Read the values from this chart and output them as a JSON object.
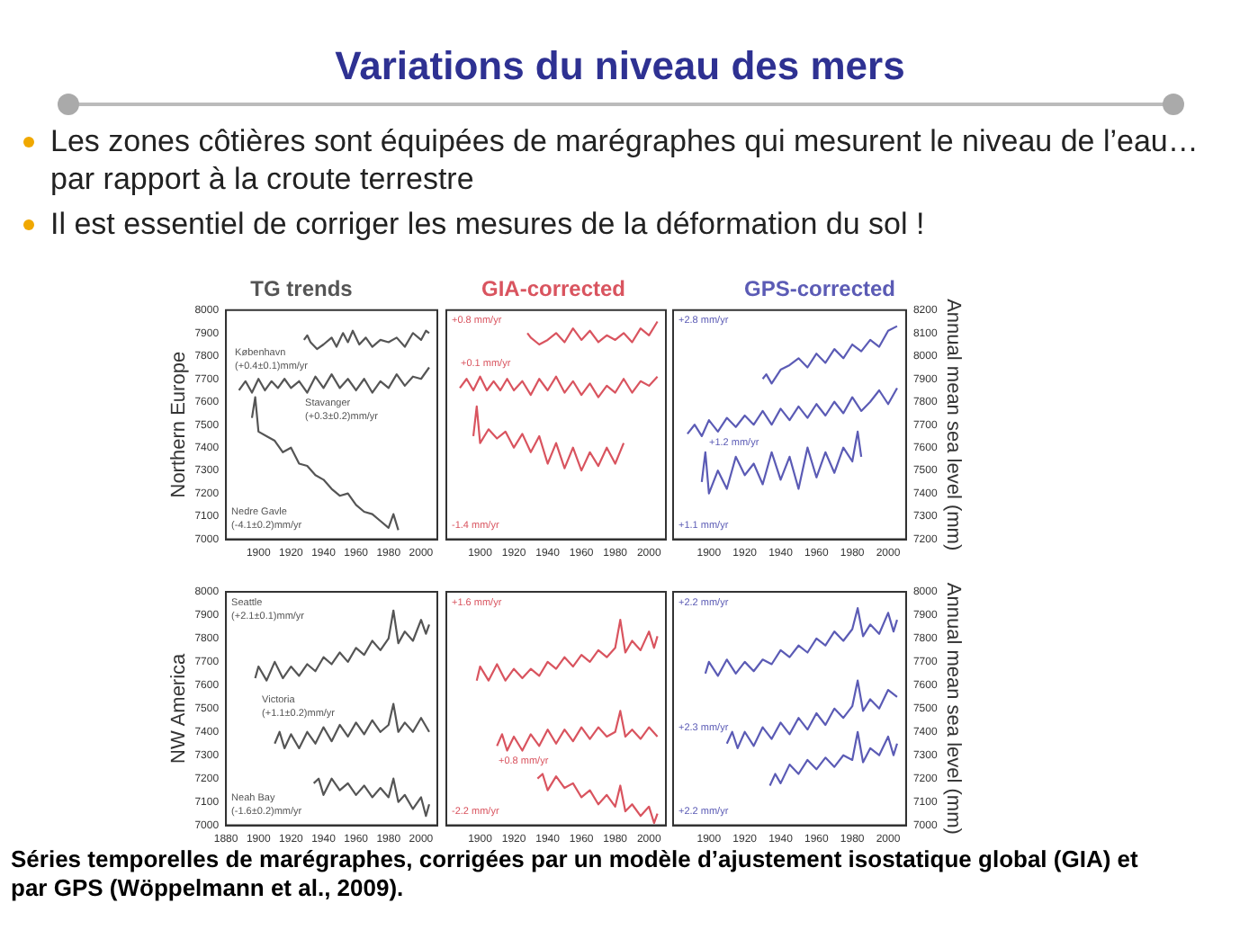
{
  "chart_data": [
    {
      "type": "other",
      "title": "Variations du niveau des mers",
      "annotations": [
        "Les zones côtières sont équipées de marégraphes qui mesurent le niveau de l’eau… par rapport à la croute terrestre",
        "Il est essentiel de corriger les mesures de la déformation du sol !",
        "Séries temporelles de marégraphes, corrigées par un modèle d’ajustement isostatique global (GIA) et par GPS (Wöppelmann et al., 2009)."
      ]
    },
    {
      "type": "line",
      "title": "TG trends",
      "ylabel": "Northern Europe",
      "xlim": [
        1880,
        2010
      ],
      "xticks": [
        1900,
        1920,
        1940,
        1960,
        1980,
        2000
      ],
      "ylim": [
        7000,
        8000
      ],
      "yticks": [
        7000,
        7100,
        7200,
        7300,
        7400,
        7500,
        7600,
        7700,
        7800,
        7900,
        8000
      ],
      "annotations": [
        "Stavanger",
        "(+0.3±0.2)mm/yr",
        "København",
        "(+0.4±0.1)mm/yr",
        "Nedre Gavle",
        "(-4.1±0.2)mm/yr"
      ],
      "series": [
        {
          "color": "#555555",
          "x": [
            1928,
            1930,
            1932,
            1936,
            1940,
            1945,
            1948,
            1952,
            1955,
            1958,
            1962,
            1966,
            1970,
            1975,
            1980,
            1985,
            1990,
            1995,
            2000,
            2003,
            2005
          ],
          "values": [
            7870,
            7890,
            7860,
            7830,
            7850,
            7880,
            7840,
            7900,
            7860,
            7910,
            7850,
            7880,
            7840,
            7870,
            7860,
            7880,
            7840,
            7900,
            7870,
            7910,
            7900
          ]
        },
        {
          "color": "#555555",
          "x": [
            1888,
            1892,
            1896,
            1900,
            1904,
            1908,
            1912,
            1916,
            1920,
            1925,
            1930,
            1935,
            1940,
            1945,
            1950,
            1955,
            1960,
            1965,
            1970,
            1975,
            1980,
            1985,
            1990,
            1995,
            2000,
            2005
          ],
          "values": [
            7650,
            7690,
            7640,
            7700,
            7650,
            7690,
            7660,
            7700,
            7660,
            7690,
            7640,
            7710,
            7660,
            7720,
            7660,
            7700,
            7650,
            7700,
            7640,
            7690,
            7660,
            7720,
            7670,
            7710,
            7700,
            7750
          ]
        },
        {
          "color": "#555555",
          "x": [
            1896,
            1898,
            1900,
            1905,
            1910,
            1915,
            1920,
            1925,
            1930,
            1935,
            1940,
            1945,
            1950,
            1955,
            1960,
            1965,
            1970,
            1975,
            1980,
            1983,
            1986
          ],
          "values": [
            7530,
            7620,
            7470,
            7450,
            7430,
            7380,
            7400,
            7330,
            7320,
            7280,
            7260,
            7220,
            7190,
            7200,
            7150,
            7120,
            7110,
            7080,
            7050,
            7110,
            7040
          ]
        }
      ]
    },
    {
      "type": "line",
      "title": "GIA-corrected",
      "tick_labels": "x",
      "xlim": [
        1880,
        2010
      ],
      "xticks": [
        1900,
        1920,
        1940,
        1960,
        1980,
        2000
      ],
      "ylim": [
        7000,
        8000
      ],
      "yticks": [
        7000,
        7100,
        7200,
        7300,
        7400,
        7500,
        7600,
        7700,
        7800,
        7900,
        8000
      ],
      "annotations": [
        "+0.8 mm/yr",
        "+0.1 mm/yr",
        "-1.4 mm/yr"
      ],
      "series": [
        {
          "color": "#d9545f",
          "x": [
            1928,
            1930,
            1935,
            1940,
            1945,
            1950,
            1955,
            1960,
            1965,
            1970,
            1975,
            1980,
            1985,
            1990,
            1995,
            2000,
            2005
          ],
          "values": [
            7900,
            7880,
            7850,
            7870,
            7900,
            7860,
            7920,
            7870,
            7910,
            7860,
            7890,
            7870,
            7900,
            7860,
            7920,
            7890,
            7950
          ]
        },
        {
          "color": "#d9545f",
          "x": [
            1888,
            1892,
            1896,
            1900,
            1904,
            1908,
            1912,
            1916,
            1920,
            1925,
            1930,
            1935,
            1940,
            1945,
            1950,
            1955,
            1960,
            1965,
            1970,
            1975,
            1980,
            1985,
            1990,
            1995,
            2000,
            2005
          ],
          "values": [
            7660,
            7700,
            7650,
            7710,
            7650,
            7690,
            7650,
            7700,
            7650,
            7690,
            7630,
            7700,
            7650,
            7710,
            7640,
            7690,
            7630,
            7680,
            7620,
            7670,
            7640,
            7700,
            7640,
            7690,
            7670,
            7710
          ]
        },
        {
          "color": "#d9545f",
          "x": [
            1896,
            1898,
            1900,
            1905,
            1910,
            1915,
            1920,
            1925,
            1930,
            1935,
            1940,
            1945,
            1950,
            1955,
            1960,
            1965,
            1970,
            1975,
            1980,
            1985
          ],
          "values": [
            7450,
            7580,
            7420,
            7480,
            7440,
            7470,
            7400,
            7460,
            7380,
            7450,
            7330,
            7420,
            7310,
            7400,
            7300,
            7380,
            7320,
            7400,
            7330,
            7420
          ]
        }
      ]
    },
    {
      "type": "line",
      "title": "GPS-corrected",
      "y2label": "Annual mean sea level (mm)",
      "xlim": [
        1880,
        2010
      ],
      "xticks": [
        1900,
        1920,
        1940,
        1960,
        1980,
        2000
      ],
      "y2lim": [
        7200,
        8200
      ],
      "y2ticks": [
        7200,
        7300,
        7400,
        7500,
        7600,
        7700,
        7800,
        7900,
        8000,
        8100,
        8200
      ],
      "annotations": [
        "+2.8 mm/yr",
        "+1.2 mm/yr",
        "+1.1 mm/yr"
      ],
      "series": [
        {
          "color": "#5b5bb5",
          "axis": "y2",
          "x": [
            1930,
            1932,
            1935,
            1940,
            1945,
            1950,
            1955,
            1960,
            1965,
            1970,
            1975,
            1980,
            1985,
            1990,
            1995,
            2000,
            2005
          ],
          "values": [
            7900,
            7920,
            7880,
            7940,
            7960,
            7990,
            7950,
            8010,
            7970,
            8030,
            7990,
            8050,
            8020,
            8070,
            8040,
            8110,
            8130
          ]
        },
        {
          "color": "#5b5bb5",
          "axis": "y2",
          "x": [
            1888,
            1892,
            1896,
            1900,
            1905,
            1910,
            1915,
            1920,
            1925,
            1930,
            1935,
            1940,
            1945,
            1950,
            1955,
            1960,
            1965,
            1970,
            1975,
            1980,
            1985,
            1990,
            1995,
            2000,
            2005
          ],
          "values": [
            7660,
            7700,
            7650,
            7720,
            7670,
            7730,
            7690,
            7740,
            7700,
            7760,
            7700,
            7770,
            7720,
            7780,
            7730,
            7790,
            7740,
            7800,
            7750,
            7820,
            7760,
            7800,
            7850,
            7790,
            7860
          ]
        },
        {
          "color": "#5b5bb5",
          "axis": "y2",
          "x": [
            1896,
            1898,
            1900,
            1905,
            1910,
            1915,
            1920,
            1925,
            1930,
            1935,
            1940,
            1945,
            1950,
            1955,
            1960,
            1965,
            1970,
            1975,
            1980,
            1983,
            1985
          ],
          "values": [
            7450,
            7580,
            7400,
            7500,
            7420,
            7560,
            7480,
            7530,
            7440,
            7580,
            7460,
            7560,
            7420,
            7600,
            7470,
            7580,
            7490,
            7600,
            7540,
            7670,
            7560
          ]
        }
      ]
    },
    {
      "type": "line",
      "ylabel": "NW America",
      "xlim": [
        1880,
        2010
      ],
      "xticks": [
        1880,
        1900,
        1920,
        1940,
        1960,
        1980,
        2000
      ],
      "ylim": [
        7000,
        8000
      ],
      "yticks": [
        7000,
        7100,
        7200,
        7300,
        7400,
        7500,
        7600,
        7700,
        7800,
        7900,
        8000
      ],
      "annotations": [
        "Seattle",
        "(+2.1±0.1)mm/yr",
        "Victoria",
        "(+1.1±0.2)mm/yr",
        "Neah Bay",
        "(-1.6±0.2)mm/yr"
      ],
      "series": [
        {
          "color": "#555555",
          "x": [
            1898,
            1900,
            1905,
            1910,
            1915,
            1920,
            1925,
            1930,
            1935,
            1940,
            1945,
            1950,
            1955,
            1960,
            1965,
            1970,
            1975,
            1980,
            1983,
            1986,
            1990,
            1995,
            2000,
            2003,
            2005
          ],
          "values": [
            7630,
            7680,
            7620,
            7700,
            7630,
            7680,
            7640,
            7690,
            7660,
            7720,
            7690,
            7740,
            7700,
            7760,
            7730,
            7790,
            7750,
            7800,
            7920,
            7780,
            7830,
            7790,
            7880,
            7820,
            7860
          ]
        },
        {
          "color": "#555555",
          "x": [
            1910,
            1913,
            1916,
            1920,
            1925,
            1930,
            1935,
            1940,
            1945,
            1950,
            1955,
            1960,
            1965,
            1970,
            1975,
            1980,
            1983,
            1986,
            1990,
            1995,
            2000,
            2005
          ],
          "values": [
            7350,
            7400,
            7330,
            7390,
            7330,
            7400,
            7350,
            7420,
            7360,
            7430,
            7380,
            7440,
            7390,
            7450,
            7400,
            7430,
            7520,
            7400,
            7440,
            7400,
            7460,
            7400
          ]
        },
        {
          "color": "#555555",
          "x": [
            1934,
            1937,
            1940,
            1945,
            1950,
            1955,
            1960,
            1965,
            1970,
            1975,
            1980,
            1983,
            1986,
            1990,
            1995,
            2000,
            2003,
            2005
          ],
          "values": [
            7180,
            7200,
            7130,
            7200,
            7150,
            7180,
            7130,
            7170,
            7120,
            7160,
            7120,
            7200,
            7100,
            7130,
            7070,
            7120,
            7040,
            7090
          ]
        }
      ]
    },
    {
      "type": "line",
      "tick_labels": "x",
      "xlim": [
        1880,
        2010
      ],
      "xticks": [
        1900,
        1920,
        1940,
        1960,
        1980,
        2000
      ],
      "ylim": [
        7000,
        8000
      ],
      "yticks": [
        7000,
        7100,
        7200,
        7300,
        7400,
        7500,
        7600,
        7700,
        7800,
        7900,
        8000
      ],
      "annotations": [
        "+1.6 mm/yr",
        "+0.8 mm/yr",
        "-2.2 mm/yr"
      ],
      "series": [
        {
          "color": "#d9545f",
          "x": [
            1898,
            1900,
            1905,
            1910,
            1915,
            1920,
            1925,
            1930,
            1935,
            1940,
            1945,
            1950,
            1955,
            1960,
            1965,
            1970,
            1975,
            1980,
            1983,
            1986,
            1990,
            1995,
            2000,
            2003,
            2005
          ],
          "values": [
            7620,
            7680,
            7620,
            7690,
            7620,
            7670,
            7630,
            7670,
            7640,
            7700,
            7670,
            7720,
            7680,
            7730,
            7700,
            7750,
            7720,
            7760,
            7880,
            7740,
            7790,
            7750,
            7830,
            7760,
            7810
          ]
        },
        {
          "color": "#d9545f",
          "x": [
            1910,
            1913,
            1916,
            1920,
            1925,
            1930,
            1935,
            1940,
            1945,
            1950,
            1955,
            1960,
            1965,
            1970,
            1975,
            1980,
            1983,
            1986,
            1990,
            1995,
            2000,
            2005
          ],
          "values": [
            7340,
            7390,
            7320,
            7380,
            7320,
            7390,
            7340,
            7410,
            7350,
            7410,
            7360,
            7420,
            7370,
            7420,
            7380,
            7400,
            7490,
            7380,
            7410,
            7370,
            7420,
            7380
          ]
        },
        {
          "color": "#d9545f",
          "x": [
            1934,
            1937,
            1940,
            1945,
            1950,
            1955,
            1960,
            1965,
            1970,
            1975,
            1980,
            1983,
            1986,
            1990,
            1995,
            2000,
            2003,
            2005
          ],
          "values": [
            7200,
            7220,
            7150,
            7210,
            7160,
            7180,
            7120,
            7150,
            7090,
            7130,
            7080,
            7170,
            7060,
            7090,
            7040,
            7080,
            7010,
            7050
          ]
        }
      ]
    },
    {
      "type": "line",
      "y2label": "Annual mean sea level (mm)",
      "xlim": [
        1880,
        2010
      ],
      "xticks": [
        1900,
        1920,
        1940,
        1960,
        1980,
        2000
      ],
      "y2lim": [
        7000,
        8000
      ],
      "y2ticks": [
        7000,
        7100,
        7200,
        7300,
        7400,
        7500,
        7600,
        7700,
        7800,
        7900,
        8000
      ],
      "annotations": [
        "+2.2 mm/yr",
        "+2.3 mm/yr",
        "+2.2 mm/yr"
      ],
      "series": [
        {
          "color": "#5b5bb5",
          "axis": "y2",
          "x": [
            1898,
            1900,
            1905,
            1910,
            1915,
            1920,
            1925,
            1930,
            1935,
            1940,
            1945,
            1950,
            1955,
            1960,
            1965,
            1970,
            1975,
            1980,
            1983,
            1986,
            1990,
            1995,
            2000,
            2003,
            2005
          ],
          "values": [
            7650,
            7700,
            7640,
            7710,
            7650,
            7700,
            7660,
            7710,
            7690,
            7750,
            7720,
            7770,
            7740,
            7800,
            7770,
            7830,
            7790,
            7840,
            7930,
            7810,
            7860,
            7820,
            7910,
            7830,
            7880
          ]
        },
        {
          "color": "#5b5bb5",
          "axis": "y2",
          "x": [
            1910,
            1913,
            1916,
            1920,
            1925,
            1930,
            1935,
            1940,
            1945,
            1950,
            1955,
            1960,
            1965,
            1970,
            1975,
            1980,
            1983,
            1986,
            1990,
            1995,
            2000,
            2005
          ],
          "values": [
            7350,
            7400,
            7330,
            7400,
            7340,
            7420,
            7370,
            7440,
            7390,
            7460,
            7410,
            7480,
            7430,
            7500,
            7460,
            7510,
            7620,
            7490,
            7540,
            7500,
            7580,
            7550
          ]
        },
        {
          "color": "#5b5bb5",
          "axis": "y2",
          "x": [
            1934,
            1937,
            1940,
            1945,
            1950,
            1955,
            1960,
            1965,
            1970,
            1975,
            1980,
            1983,
            1986,
            1990,
            1995,
            2000,
            2003,
            2005
          ],
          "values": [
            7170,
            7220,
            7180,
            7260,
            7220,
            7280,
            7240,
            7290,
            7250,
            7300,
            7280,
            7400,
            7270,
            7330,
            7300,
            7380,
            7300,
            7350
          ]
        }
      ]
    }
  ]
}
